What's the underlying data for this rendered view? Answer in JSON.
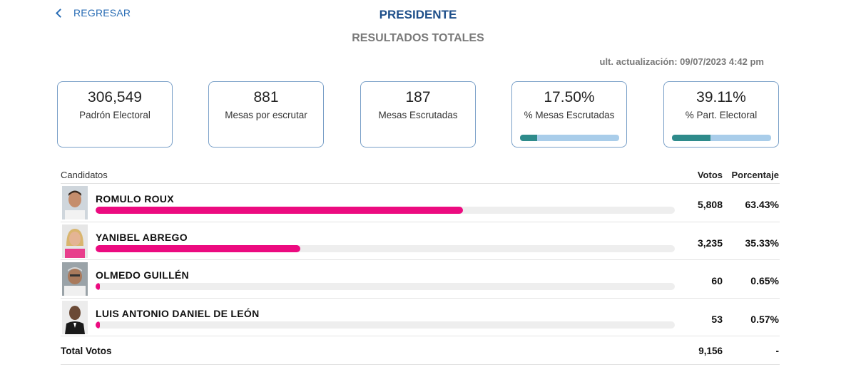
{
  "header": {
    "back_label": "REGRESAR",
    "title": "PRESIDENTE",
    "subtitle": "RESULTADOS TOTALES",
    "updated": "ult. actualización: 09/07/2023 4:42 pm"
  },
  "cards": [
    {
      "value": "306,549",
      "label": "Padrón Electoral"
    },
    {
      "value": "881",
      "label": "Mesas por escrutar"
    },
    {
      "value": "187",
      "label": "Mesas Escrutadas"
    },
    {
      "value": "17.50%",
      "label": "% Mesas Escrutadas",
      "progress": 0.175
    },
    {
      "value": "39.11%",
      "label": "% Part. Electoral",
      "progress": 0.3911
    }
  ],
  "table": {
    "col_candidates": "Candidatos",
    "col_votes": "Votos",
    "col_pct": "Porcentaje",
    "rows": [
      {
        "name": "ROMULO ROUX",
        "votes": "5,808",
        "pct": "63.43%",
        "share": 0.6343
      },
      {
        "name": "YANIBEL ABREGO",
        "votes": "3,235",
        "pct": "35.33%",
        "share": 0.3533
      },
      {
        "name": "OLMEDO GUILLÉN",
        "votes": "60",
        "pct": "0.65%",
        "share": 0.0065
      },
      {
        "name": "LUIS ANTONIO DANIEL DE LEÓN",
        "votes": "53",
        "pct": "0.57%",
        "share": 0.0057
      }
    ],
    "total_label": "Total Votos",
    "total_votes": "9,156",
    "total_pct": "-"
  },
  "colors": {
    "accent": "#ec0b80",
    "progress_fill": "#2e8b8b",
    "progress_track": "#a9cdea",
    "title": "#1e4f8a"
  }
}
